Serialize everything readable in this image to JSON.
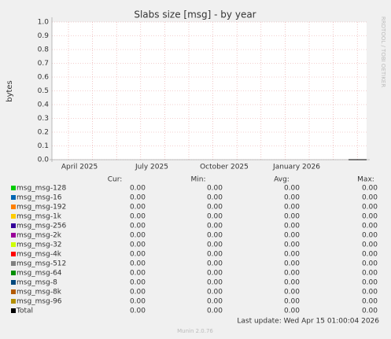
{
  "chart_data": {
    "type": "line",
    "title": "Slabs size [msg] - by year",
    "y_label": "bytes",
    "ylim": [
      0,
      1
    ],
    "yticks": [
      {
        "value": 0,
        "label": "0.0"
      },
      0.1,
      0.2,
      0.3,
      0.4,
      0.5,
      0.6,
      0.7,
      0.8,
      0.9,
      {
        "value": 1,
        "label": "1.0"
      }
    ],
    "x_labels": [
      "April 2025",
      "July 2025",
      "October 2025",
      "January 2026"
    ],
    "grid": true,
    "columns": [
      "Cur:",
      "Min:",
      "Avg:",
      "Max:"
    ],
    "series": [
      {
        "name": "msg_msg-128",
        "color": "#00cc00",
        "values": [
          0,
          0,
          0,
          0
        ],
        "value_labels": [
          "0.00",
          "0.00",
          "0.00",
          "0.00"
        ]
      },
      {
        "name": "msg_msg-16",
        "color": "#0066b3",
        "values": [
          0,
          0,
          0,
          0
        ],
        "value_labels": [
          "0.00",
          "0.00",
          "0.00",
          "0.00"
        ]
      },
      {
        "name": "msg_msg-192",
        "color": "#ff8000",
        "values": [
          0,
          0,
          0,
          0
        ],
        "value_labels": [
          "0.00",
          "0.00",
          "0.00",
          "0.00"
        ]
      },
      {
        "name": "msg_msg-1k",
        "color": "#ffcc00",
        "values": [
          0,
          0,
          0,
          0
        ],
        "value_labels": [
          "0.00",
          "0.00",
          "0.00",
          "0.00"
        ]
      },
      {
        "name": "msg_msg-256",
        "color": "#330099",
        "values": [
          0,
          0,
          0,
          0
        ],
        "value_labels": [
          "0.00",
          "0.00",
          "0.00",
          "0.00"
        ]
      },
      {
        "name": "msg_msg-2k",
        "color": "#990099",
        "values": [
          0,
          0,
          0,
          0
        ],
        "value_labels": [
          "0.00",
          "0.00",
          "0.00",
          "0.00"
        ]
      },
      {
        "name": "msg_msg-32",
        "color": "#ccff00",
        "values": [
          0,
          0,
          0,
          0
        ],
        "value_labels": [
          "0.00",
          "0.00",
          "0.00",
          "0.00"
        ]
      },
      {
        "name": "msg_msg-4k",
        "color": "#ff0000",
        "values": [
          0,
          0,
          0,
          0
        ],
        "value_labels": [
          "0.00",
          "0.00",
          "0.00",
          "0.00"
        ]
      },
      {
        "name": "msg_msg-512",
        "color": "#808080",
        "values": [
          0,
          0,
          0,
          0
        ],
        "value_labels": [
          "0.00",
          "0.00",
          "0.00",
          "0.00"
        ]
      },
      {
        "name": "msg_msg-64",
        "color": "#008f00",
        "values": [
          0,
          0,
          0,
          0
        ],
        "value_labels": [
          "0.00",
          "0.00",
          "0.00",
          "0.00"
        ]
      },
      {
        "name": "msg_msg-8",
        "color": "#00487d",
        "values": [
          0,
          0,
          0,
          0
        ],
        "value_labels": [
          "0.00",
          "0.00",
          "0.00",
          "0.00"
        ]
      },
      {
        "name": "msg_msg-8k",
        "color": "#b35a00",
        "values": [
          0,
          0,
          0,
          0
        ],
        "value_labels": [
          "0.00",
          "0.00",
          "0.00",
          "0.00"
        ]
      },
      {
        "name": "msg_msg-96",
        "color": "#b38f00",
        "values": [
          0,
          0,
          0,
          0
        ],
        "value_labels": [
          "0.00",
          "0.00",
          "0.00",
          "0.00"
        ]
      },
      {
        "name": "Total",
        "color": "#000000",
        "values": [
          0,
          0,
          0,
          0
        ],
        "value_labels": [
          "0.00",
          "0.00",
          "0.00",
          "0.00"
        ]
      }
    ],
    "last_update": "Last update: Wed Apr 15 01:00:04 2026",
    "watermark": "RRDTOOL / TOBI OETIKER",
    "footer": "Munin 2.0.76"
  }
}
